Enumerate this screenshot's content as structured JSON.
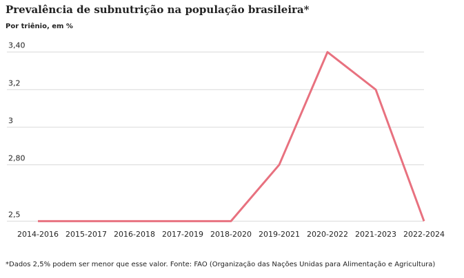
{
  "chart_data": {
    "type": "line",
    "title": "Prevalência de subnutrição na população brasileira*",
    "subtitle": "Por triênio, em %",
    "note": "*Dados 2,5% podem ser menor que esse valor. Fonte: FAO (Organização das Nações Unidas para Alimentação e Agricultura)",
    "categories": [
      "2014-2016",
      "2015-2017",
      "2016-2018",
      "2017-2019",
      "2018-2020",
      "2019-2021",
      "2020-2022",
      "2021-2023",
      "2022-2024"
    ],
    "values": [
      2.5,
      2.5,
      2.5,
      2.5,
      2.5,
      2.8,
      3.4,
      3.2,
      2.5
    ],
    "color": "#e8717f",
    "ylim": [
      2.45,
      3.45
    ],
    "yticks": [
      {
        "value": 2.5,
        "label": "2,5"
      },
      {
        "value": 2.8,
        "label": "2,80"
      },
      3,
      {
        "value": 3.2,
        "label": "3,2"
      },
      {
        "value": 3.4,
        "label": "3,40"
      }
    ],
    "grid": true
  }
}
